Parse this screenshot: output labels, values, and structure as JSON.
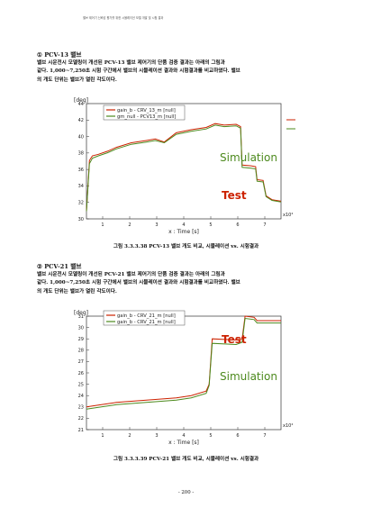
{
  "header": "밸브 제어기 신뢰성 평가를 위한 시뮬레이션 모델 개발 및 시험 결과",
  "section1": {
    "heading": "① PCV-13 밸브",
    "lines": [
      "밸브 시운전시 모델링이 개선된 PCV-13 밸브 제어기의 단품 검증 결과는 아래의 그림과",
      "같다. 1,000~7,250초 시험 구간에서 밸브의 시뮬레이션 결과와 시험결과를 비교하였다. 밸브",
      "의 개도 단위는 밸브가 열린 각도이다."
    ],
    "caption": "그림 3.3.3.38 PCV-13 밸브 개도 비교, 시뮬레이션 vs. 시험결과"
  },
  "section2": {
    "heading": "② PCV-21 밸브",
    "lines": [
      "밸브 시운전시 모델링이 개선된 PCV-21 밸브 제어기의 단품 검증 결과는 아래의 그림과",
      "같다. 1,000~7,250초 시험 구간에서 밸브의 시뮬레이션 결과와 시험결과를 비교하였다. 밸브",
      "의 개도 단위는 밸브가 열린 각도이다."
    ],
    "caption": "그림 3.3.3.39 PCV-21 밸브 개도 비교, 시뮬레이션 vs. 시험결과"
  },
  "page_number": "- 200 -",
  "chart_data": [
    {
      "type": "line",
      "ylabel": "[deg]",
      "xlabel": "x : Time [s]",
      "x_exponent": "x10⁴",
      "ylim": [
        30,
        45
      ],
      "xlim": [
        0.1,
        0.75
      ],
      "yticks": [
        "30",
        "32",
        "34",
        "36",
        "38",
        "40",
        "42",
        "44"
      ],
      "xticks": [
        "1",
        "2",
        "3",
        "4",
        "5",
        "6",
        "7"
      ],
      "legend": [
        "gain_b - CRV_13_m [null]",
        "gm_null - PCV13_m [null]"
      ],
      "annotations": {
        "simulation": "Simulation",
        "test": "Test"
      },
      "colors": {
        "test": "#cc2200",
        "simulation": "#4d8a1e"
      },
      "series": [
        {
          "name": "gain_b - CRV_13_m [null]",
          "role": "test",
          "x": [
            0.1,
            0.11,
            0.12,
            0.14,
            0.17,
            0.2,
            0.25,
            0.3,
            0.33,
            0.36,
            0.4,
            0.45,
            0.5,
            0.53,
            0.56,
            0.6,
            0.615,
            0.62,
            0.65,
            0.665,
            0.67,
            0.69,
            0.7,
            0.72,
            0.75
          ],
          "y": [
            31,
            37.6,
            38.2,
            38.4,
            38.8,
            39.3,
            39.9,
            40.2,
            40.4,
            40.0,
            41.2,
            41.6,
            41.9,
            42.4,
            42.2,
            42.3,
            42.0,
            37.0,
            36.9,
            36.8,
            35.1,
            35.0,
            33.0,
            32.5,
            32.3
          ]
        },
        {
          "name": "gm_null - PCV13_m [null]",
          "role": "simulation",
          "x": [
            0.1,
            0.11,
            0.12,
            0.14,
            0.17,
            0.2,
            0.25,
            0.3,
            0.33,
            0.36,
            0.4,
            0.45,
            0.5,
            0.53,
            0.56,
            0.6,
            0.615,
            0.62,
            0.65,
            0.665,
            0.67,
            0.69,
            0.7,
            0.72,
            0.75
          ],
          "y": [
            31,
            37.2,
            37.9,
            38.2,
            38.6,
            39.1,
            39.7,
            40.0,
            40.2,
            39.9,
            41.0,
            41.4,
            41.7,
            42.2,
            42.0,
            42.1,
            41.8,
            36.7,
            36.6,
            36.5,
            34.9,
            34.8,
            32.9,
            32.4,
            32.2
          ]
        }
      ]
    },
    {
      "type": "line",
      "ylabel": "[deg]",
      "xlabel": "x : Time [s]",
      "x_exponent": "x10⁴",
      "ylim": [
        21,
        31
      ],
      "xlim": [
        0.1,
        0.75
      ],
      "yticks": [
        "21",
        "22",
        "23",
        "24",
        "25",
        "26",
        "27",
        "28",
        "29",
        "30",
        "31"
      ],
      "xticks": [
        "1",
        "2",
        "3",
        "4",
        "5",
        "6",
        "7"
      ],
      "legend": [
        "gain_b - CRV_21_m [null]",
        "gain_b - CRV_21_m [null]"
      ],
      "annotations": {
        "simulation": "Simulation",
        "test": "Test"
      },
      "colors": {
        "test": "#cc2200",
        "simulation": "#4d8a1e"
      },
      "series": [
        {
          "name": "gain_b - CRV_21_m [null]",
          "role": "test",
          "x": [
            0.1,
            0.15,
            0.2,
            0.25,
            0.3,
            0.35,
            0.4,
            0.45,
            0.5,
            0.51,
            0.52,
            0.6,
            0.62,
            0.63,
            0.66,
            0.67,
            0.75
          ],
          "y": [
            23.0,
            23.2,
            23.4,
            23.5,
            23.6,
            23.7,
            23.8,
            24.0,
            24.4,
            25.0,
            29.0,
            28.9,
            29.0,
            31.0,
            30.9,
            30.6,
            30.6
          ]
        },
        {
          "name": "gain_b - CRV_21_m [null]",
          "role": "simulation",
          "x": [
            0.1,
            0.15,
            0.2,
            0.25,
            0.3,
            0.35,
            0.4,
            0.45,
            0.5,
            0.51,
            0.52,
            0.6,
            0.62,
            0.63,
            0.66,
            0.67,
            0.75
          ],
          "y": [
            22.8,
            23.0,
            23.2,
            23.3,
            23.4,
            23.5,
            23.6,
            23.8,
            24.2,
            24.9,
            28.6,
            28.5,
            28.7,
            30.8,
            30.7,
            30.4,
            30.4
          ]
        }
      ]
    }
  ]
}
